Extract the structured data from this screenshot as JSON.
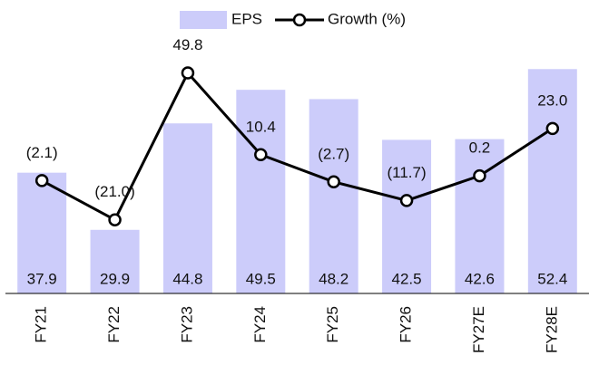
{
  "chart_data": {
    "type": "bar_line",
    "categories": [
      "FY21",
      "FY22",
      "FY23",
      "FY24",
      "FY25",
      "FY26",
      "FY27E",
      "FY28E"
    ],
    "series": [
      {
        "name": "EPS",
        "type": "bar",
        "color": "#ccccfa",
        "values": [
          37.9,
          29.9,
          44.8,
          49.5,
          48.2,
          42.5,
          42.6,
          52.4
        ]
      },
      {
        "name": "Growth (%)",
        "type": "line",
        "axis": "y2",
        "color": "#000000",
        "values": [
          -2.1,
          -21.0,
          49.8,
          10.4,
          -2.7,
          -11.7,
          0.2,
          23.0
        ],
        "value_labels": [
          "(2.1)",
          "(21.0)",
          "49.8",
          "10.4",
          "(2.7)",
          "(11.7)",
          "0.2",
          "23.0"
        ]
      }
    ],
    "ylim": [
      21,
      57
    ],
    "y2lim": [
      -56.5,
      67.5
    ],
    "legend": "top"
  }
}
